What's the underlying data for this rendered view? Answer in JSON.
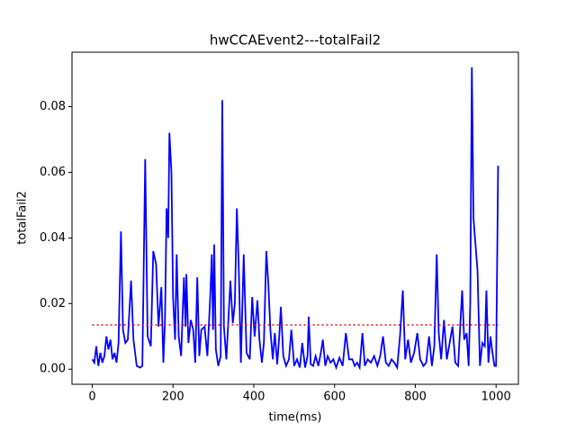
{
  "chart_data": {
    "type": "line",
    "title": "hwCCAEvent2---totalFail2",
    "xlabel": "time(ms)",
    "ylabel": "totalFail2",
    "xlim": [
      -50.25,
      1055.25
    ],
    "ylim": [
      -0.0046,
      0.0966
    ],
    "xticks": [
      0,
      200,
      400,
      600,
      800,
      1000
    ],
    "yticks": [
      {
        "value": 0,
        "label": "0.00"
      },
      {
        "value": 0.02,
        "label": "0.02"
      },
      {
        "value": 0.04,
        "label": "0.04"
      },
      {
        "value": 0.06,
        "label": "0.06"
      },
      {
        "value": 0.08,
        "label": "0.08"
      }
    ],
    "series": [
      {
        "color": "#0000ff",
        "style": "solid",
        "x": [
          0,
          5,
          10,
          15,
          20,
          25,
          30,
          35,
          40,
          45,
          50,
          55,
          60,
          65,
          71,
          76,
          82,
          88,
          96,
          102,
          110,
          118,
          124,
          131,
          137,
          145,
          151,
          158,
          164,
          171,
          176,
          180,
          184,
          188,
          191,
          196,
          200,
          205,
          209,
          214,
          220,
          227,
          231,
          233,
          238,
          244,
          250,
          255,
          260,
          265,
          270,
          278,
          285,
          292,
          296,
          299,
          302,
          306,
          312,
          318,
          322,
          326,
          332,
          337,
          342,
          348,
          353,
          358,
          363,
          368,
          375,
          382,
          390,
          396,
          402,
          409,
          414,
          420,
          425,
          431,
          436,
          441,
          447,
          452,
          458,
          463,
          467,
          473,
          480,
          487,
          493,
          500,
          507,
          514,
          520,
          527,
          533,
          536,
          541,
          547,
          553,
          560,
          566,
          571,
          577,
          583,
          590,
          597,
          604,
          612,
          620,
          628,
          636,
          644,
          650,
          656,
          662,
          669,
          675,
          682,
          690,
          698,
          706,
          713,
          720,
          727,
          734,
          741,
          748,
          755,
          762,
          769,
          775,
          782,
          789,
          797,
          805,
          812,
          820,
          827,
          834,
          841,
          847,
          853,
          858,
          864,
          871,
          878,
          885,
          892,
          899,
          906,
          912,
          916,
          921,
          927,
          932,
          936,
          940,
          944,
          949,
          954,
          960,
          966,
          972,
          976,
          981,
          986,
          991,
          996,
          1000,
          1005
        ],
        "values": [
          0.003,
          0.002,
          0.007,
          0.001,
          0.005,
          0.002,
          0.004,
          0.01,
          0.006,
          0.009,
          0.003,
          0.005,
          0.002,
          0.008,
          0.042,
          0.012,
          0.008,
          0.009,
          0.027,
          0.009,
          0.001,
          0.0005,
          0.001,
          0.064,
          0.01,
          0.007,
          0.036,
          0.032,
          0.013,
          0.025,
          0.002,
          0.015,
          0.049,
          0.04,
          0.072,
          0.06,
          0.022,
          0.009,
          0.035,
          0.01,
          0.004,
          0.028,
          0.013,
          0.029,
          0.008,
          0.015,
          0.012,
          0.002,
          0.028,
          0.004,
          0.012,
          0.013,
          0.004,
          0.022,
          0.035,
          0.012,
          0.038,
          0.006,
          0.001,
          0.004,
          0.082,
          0.013,
          0.003,
          0.015,
          0.027,
          0.014,
          0.02,
          0.049,
          0.03,
          0.002,
          0.035,
          0.005,
          0.003,
          0.022,
          0.01,
          0.021,
          0.009,
          0.002,
          0.008,
          0.036,
          0.026,
          0.012,
          0.003,
          0.011,
          0.0015,
          0.01,
          0.019,
          0.004,
          0.001,
          0.003,
          0.012,
          0.001,
          0.003,
          0.0005,
          0.008,
          0.0005,
          0.004,
          0.016,
          0.0015,
          0.001,
          0.004,
          0.001,
          0.005,
          0.009,
          0.001,
          0.004,
          0.002,
          0.003,
          0.0005,
          0.0035,
          0.001,
          0.011,
          0.003,
          0.003,
          0.001,
          0.002,
          0.0005,
          0.011,
          0.001,
          0.003,
          0.002,
          0.004,
          0.001,
          0.004,
          0.01,
          0.002,
          0.001,
          0.003,
          0.002,
          0.0005,
          0.01,
          0.024,
          0.003,
          0.009,
          0.002,
          0.005,
          0.011,
          0.003,
          0.001,
          0.002,
          0.01,
          0.001,
          0.007,
          0.035,
          0.011,
          0.003,
          0.015,
          0.003,
          0.008,
          0.013,
          0.002,
          0.001,
          0.015,
          0.024,
          0.009,
          0.011,
          0.001,
          0.02,
          0.092,
          0.046,
          0.038,
          0.03,
          0.001,
          0.008,
          0.007,
          0.024,
          0.002,
          0.01,
          0.005,
          0.001,
          0.001,
          0.062
        ]
      },
      {
        "color": "#ff0000",
        "style": "dotted",
        "x": [
          0,
          1005
        ],
        "values": [
          0.0135,
          0.0135
        ]
      }
    ]
  }
}
